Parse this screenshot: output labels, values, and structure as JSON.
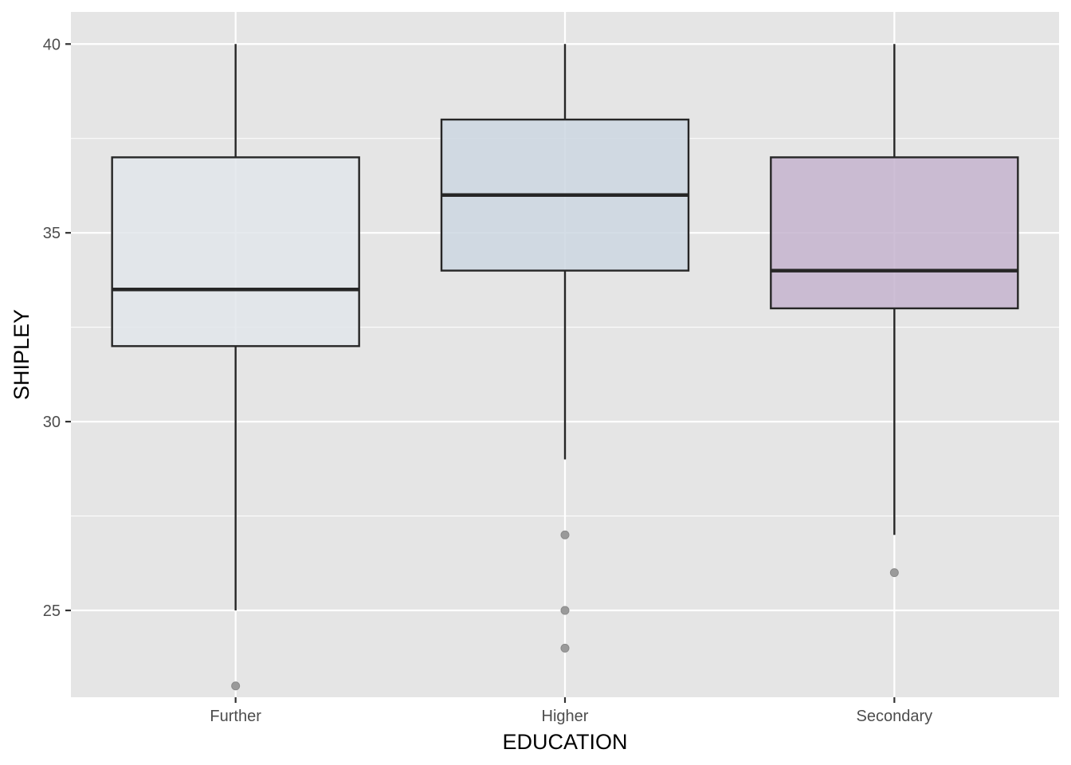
{
  "chart_data": {
    "type": "box",
    "title": "",
    "xlabel": "EDUCATION",
    "ylabel": "SHIPLEY",
    "categories": [
      "Further",
      "Higher",
      "Secondary"
    ],
    "ylim": [
      22.7,
      40.85
    ],
    "yticks": [
      25,
      30,
      35,
      40
    ],
    "ytick_labels": [
      "25",
      "30",
      "35",
      "40"
    ],
    "grid": true,
    "boxes": [
      {
        "category": "Further",
        "whisker_low": 25,
        "q1": 32,
        "median": 33.5,
        "q3": 37,
        "whisker_high": 40,
        "outliers": [
          23
        ],
        "fill": "#e0e5ea"
      },
      {
        "category": "Higher",
        "whisker_low": 29,
        "q1": 34,
        "median": 36,
        "q3": 38,
        "whisker_high": 40,
        "outliers": [
          27,
          25,
          24
        ],
        "fill": "#cad5e0"
      },
      {
        "category": "Secondary",
        "whisker_low": 27,
        "q1": 33,
        "median": 34,
        "q3": 37,
        "whisker_high": 40,
        "outliers": [
          26
        ],
        "fill": "#c3b1cd"
      }
    ],
    "colors": {
      "panel": "#e5e5e5",
      "grid": "#ffffff",
      "box_stroke": "#262626",
      "outlier": "#9a9a9a"
    }
  }
}
